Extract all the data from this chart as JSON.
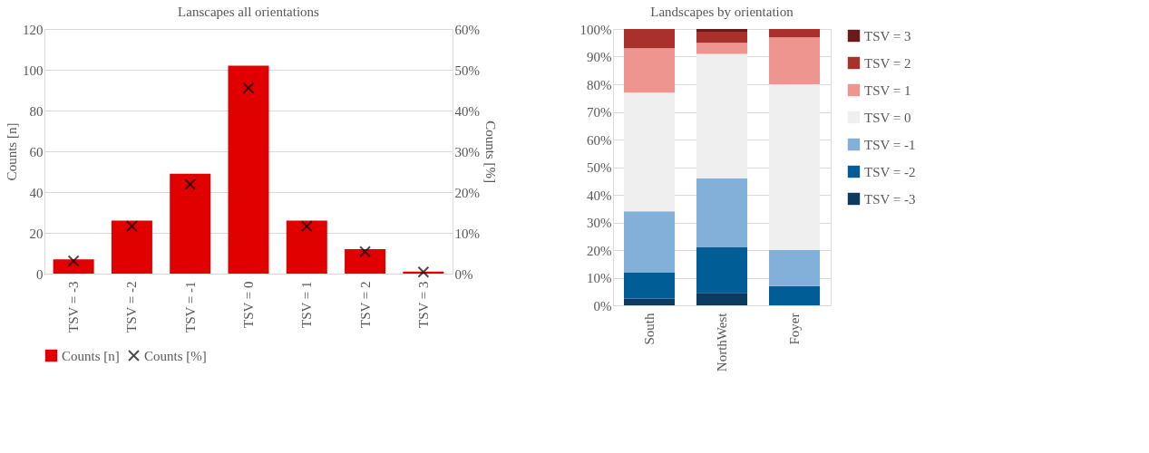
{
  "chart_data": [
    {
      "type": "bar",
      "title": "Lanscapes all orientations",
      "ylabel": "Counts [n]",
      "y2label": "Counts [%]",
      "categories": [
        "TSV = -3",
        "TSV = -2",
        "TSV = -1",
        "TSV = 0",
        "TSV = 1",
        "TSV = 2",
        "TSV = 3"
      ],
      "series": [
        {
          "name": "Counts [n]",
          "color": "#e00000",
          "values": [
            7,
            26,
            49,
            102,
            26,
            12,
            1
          ]
        },
        {
          "name": "Counts [%]",
          "type": "scatter",
          "axis": "y2",
          "marker": "cross",
          "color": "#000000",
          "values": [
            3.1,
            11.6,
            21.9,
            45.5,
            11.6,
            5.4,
            0.4
          ]
        }
      ],
      "ylim": [
        0,
        120
      ],
      "yticks": [
        0,
        20,
        40,
        60,
        80,
        100,
        120
      ],
      "y2lim": [
        0,
        60
      ],
      "y2ticks": [
        {
          "value": 0,
          "label": "0%"
        },
        {
          "value": 10,
          "label": "10%"
        },
        {
          "value": 20,
          "label": "20%"
        },
        {
          "value": 30,
          "label": "30%"
        },
        {
          "value": 40,
          "label": "40%"
        },
        {
          "value": 50,
          "label": "50%"
        },
        {
          "value": 60,
          "label": "60%"
        }
      ],
      "grid": "y",
      "legend": "bottom"
    },
    {
      "type": "bar",
      "stacked": true,
      "title": "Landscapes by orientation",
      "categories": [
        "South",
        "NorthWest",
        "Foyer"
      ],
      "series": [
        {
          "name": "TSV = -3",
          "color": "#0d3a5f",
          "values": [
            2.5,
            4.5,
            0
          ]
        },
        {
          "name": "TSV = -2",
          "color": "#005d96",
          "values": [
            9.5,
            16.5,
            7
          ]
        },
        {
          "name": "TSV = -1",
          "color": "#82b0d8",
          "values": [
            22,
            25,
            13
          ]
        },
        {
          "name": "TSV = 0",
          "color": "#efefef",
          "values": [
            43,
            45,
            60
          ]
        },
        {
          "name": "TSV = 1",
          "color": "#ee9590",
          "values": [
            16,
            4,
            17
          ]
        },
        {
          "name": "TSV = 2",
          "color": "#a9302b",
          "values": [
            7,
            4,
            3
          ]
        },
        {
          "name": "TSV = 3",
          "color": "#6b1a1a",
          "values": [
            0,
            1,
            0
          ]
        }
      ],
      "ylim": [
        0,
        100
      ],
      "yticks": [
        {
          "value": 0,
          "label": "0%"
        },
        {
          "value": 10,
          "label": "10%"
        },
        {
          "value": 20,
          "label": "20%"
        },
        {
          "value": 30,
          "label": "30%"
        },
        {
          "value": 40,
          "label": "40%"
        },
        {
          "value": 50,
          "label": "50%"
        },
        {
          "value": 60,
          "label": "60%"
        },
        {
          "value": 70,
          "label": "70%"
        },
        {
          "value": 80,
          "label": "80%"
        },
        {
          "value": 90,
          "label": "90%"
        },
        {
          "value": 100,
          "label": "100%"
        }
      ],
      "grid": "y",
      "legend": "right"
    }
  ]
}
